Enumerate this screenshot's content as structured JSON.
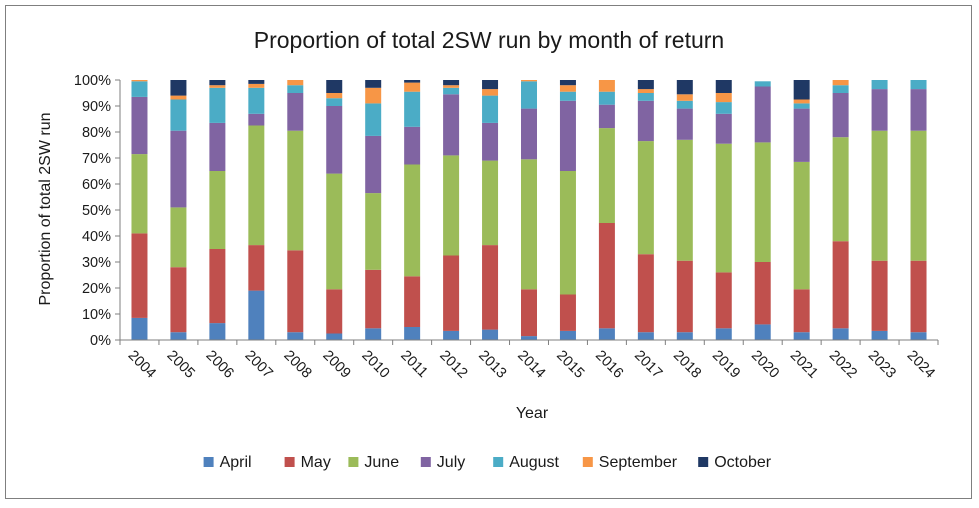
{
  "chart_data": {
    "type": "bar",
    "stacked": true,
    "title": "Proportion of total 2SW run by month of return",
    "xlabel": "Year",
    "ylabel": "Proportion of total 2SW run",
    "ylim": [
      0,
      100
    ],
    "yticks": [
      "0%",
      "10%",
      "20%",
      "30%",
      "40%",
      "50%",
      "60%",
      "70%",
      "80%",
      "90%",
      "100%"
    ],
    "categories": [
      "2004",
      "2005",
      "2006",
      "2007",
      "2008",
      "2009",
      "2010",
      "2011",
      "2012",
      "2013",
      "2014",
      "2015",
      "2016",
      "2017",
      "2018",
      "2019",
      "2020",
      "2021",
      "2022",
      "2023",
      "2024"
    ],
    "legend_position": "bottom",
    "series": [
      {
        "name": "April",
        "color": "#4f81bd",
        "values": [
          8.5,
          3,
          6.5,
          19,
          3,
          2.5,
          4.5,
          5,
          3.5,
          4,
          1.5,
          3.5,
          4.5,
          3,
          3,
          4.5,
          6,
          3,
          4.5,
          3.5,
          3
        ]
      },
      {
        "name": "May",
        "color": "#c0504d",
        "values": [
          32.5,
          25,
          28.5,
          17.5,
          31.5,
          17,
          22.5,
          19.5,
          29,
          32.5,
          18,
          14,
          40.5,
          30,
          27.5,
          21.5,
          24,
          16.5,
          33.5,
          27,
          27.5
        ]
      },
      {
        "name": "June",
        "color": "#9bbb59",
        "values": [
          30.5,
          23,
          30,
          46,
          46,
          44.5,
          29.5,
          43,
          38.5,
          32.5,
          50,
          47.5,
          36.5,
          43.5,
          46.5,
          49.5,
          46,
          49,
          40,
          50,
          50
        ]
      },
      {
        "name": "July",
        "color": "#8064a2",
        "values": [
          22,
          29.5,
          18.5,
          4.5,
          14.5,
          26,
          22,
          14.5,
          23.5,
          14.5,
          19.5,
          27,
          9,
          15.5,
          12,
          11.5,
          21.5,
          20.5,
          17,
          16,
          16
        ]
      },
      {
        "name": "August",
        "color": "#4bacc6",
        "values": [
          6,
          12,
          13.5,
          10,
          3,
          3,
          12.5,
          13.5,
          2.5,
          10.5,
          10.5,
          3.5,
          5,
          3,
          3,
          4.5,
          2,
          2,
          3,
          3.5,
          3.5
        ]
      },
      {
        "name": "September",
        "color": "#f79646",
        "values": [
          0.5,
          1.5,
          1,
          1.5,
          2,
          2,
          6,
          3.5,
          1,
          2.5,
          0.5,
          2.5,
          4.5,
          1.5,
          2.5,
          3.5,
          0,
          1.5,
          2,
          0,
          0
        ]
      },
      {
        "name": "October",
        "color": "#1f3864",
        "values": [
          0,
          6,
          2,
          1.5,
          0,
          5,
          3,
          1,
          2,
          3.5,
          0,
          2,
          0,
          3.5,
          5.5,
          5,
          0,
          7.5,
          0,
          0,
          0
        ]
      }
    ]
  }
}
